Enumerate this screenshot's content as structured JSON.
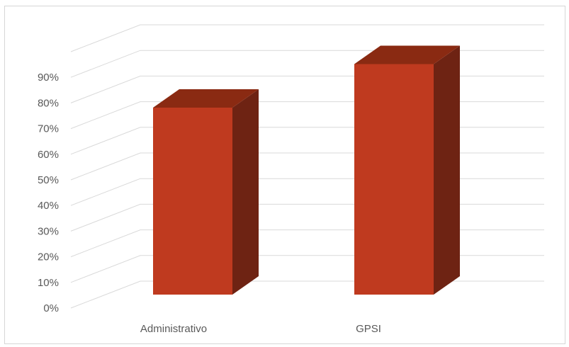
{
  "chart_data": {
    "type": "bar",
    "style": "3d-column",
    "categories": [
      "Administrativo",
      "GPSI"
    ],
    "values": [
      0.74,
      0.91
    ],
    "ylim": [
      0,
      1.0
    ],
    "yticks": [
      "0%",
      "10%",
      "20%",
      "30%",
      "40%",
      "50%",
      "60%",
      "70%",
      "80%",
      "90%"
    ],
    "grid": true,
    "legend": "none",
    "colors": {
      "front": "#BF3A1F",
      "top": "#8A2A12",
      "side": "#6E2313",
      "grid": "#d9d9d9"
    }
  }
}
